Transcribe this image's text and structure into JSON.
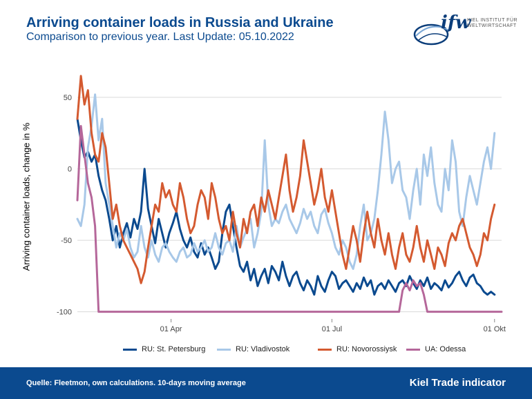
{
  "header": {
    "title": "Arriving container loads in Russia and Ukraine",
    "subtitle": "Comparison to previous year. Last Update: 05.10.2022"
  },
  "logo": {
    "mark": "ifw",
    "line1": "KIEL INSTITUT FÜR",
    "line2": "WELTWIRTSCHAFT",
    "icon": "globe-swoosh-icon"
  },
  "footer": {
    "source": "Quelle: Fleetmon, own calculations. 10-days moving average",
    "brand": "Kiel Trade indicator"
  },
  "colors": {
    "brand": "#0b4a8f",
    "grid": "#d9d9d9"
  },
  "chart_data": {
    "type": "line",
    "ylabel": "Arriving container loads, change in %",
    "ylim": [
      -105,
      65
    ],
    "yticks": [
      -100,
      -50,
      0,
      50
    ],
    "xticks": [
      {
        "label": "01 Apr",
        "x": 53
      },
      {
        "label": "01 Jul",
        "x": 144
      },
      {
        "label": "01 Okt",
        "x": 236
      }
    ],
    "xlim": [
      0,
      240
    ],
    "grid": true,
    "legend_position": "bottom",
    "series": [
      {
        "name": "RU: St. Petersburg",
        "color": "#0b4a8f",
        "x": [
          0,
          2,
          4,
          6,
          8,
          10,
          12,
          14,
          16,
          18,
          20,
          22,
          24,
          26,
          28,
          30,
          32,
          34,
          36,
          38,
          40,
          42,
          44,
          46,
          48,
          50,
          52,
          54,
          56,
          58,
          60,
          62,
          64,
          66,
          68,
          70,
          72,
          74,
          76,
          78,
          80,
          82,
          84,
          86,
          88,
          90,
          92,
          94,
          96,
          98,
          100,
          102,
          104,
          106,
          108,
          110,
          112,
          114,
          116,
          118,
          120,
          122,
          124,
          126,
          128,
          130,
          132,
          134,
          136,
          138,
          140,
          142,
          144,
          146,
          148,
          150,
          152,
          154,
          156,
          158,
          160,
          162,
          164,
          166,
          168,
          170,
          172,
          174,
          176,
          178,
          180,
          182,
          184,
          186,
          188,
          190,
          192,
          194,
          196,
          198,
          200,
          202,
          204,
          206,
          208,
          210,
          212,
          214,
          216,
          218,
          220,
          222,
          224,
          226,
          228,
          230,
          232,
          234,
          236
        ],
        "values": [
          35,
          20,
          8,
          12,
          5,
          10,
          -5,
          -15,
          -22,
          -35,
          -50,
          -40,
          -55,
          -45,
          -38,
          -48,
          -35,
          -42,
          -30,
          0,
          -28,
          -40,
          -52,
          -35,
          -45,
          -55,
          -45,
          -38,
          -30,
          -42,
          -50,
          -55,
          -48,
          -58,
          -62,
          -52,
          -60,
          -55,
          -62,
          -70,
          -65,
          -45,
          -30,
          -25,
          -40,
          -55,
          -68,
          -72,
          -65,
          -78,
          -70,
          -82,
          -75,
          -70,
          -80,
          -68,
          -72,
          -78,
          -65,
          -75,
          -82,
          -75,
          -72,
          -80,
          -85,
          -78,
          -82,
          -88,
          -75,
          -82,
          -86,
          -78,
          -72,
          -75,
          -84,
          -80,
          -78,
          -82,
          -86,
          -80,
          -84,
          -76,
          -82,
          -78,
          -88,
          -82,
          -80,
          -84,
          -78,
          -82,
          -86,
          -80,
          -78,
          -82,
          -75,
          -80,
          -84,
          -78,
          -82,
          -76,
          -84,
          -80,
          -82,
          -85,
          -78,
          -83,
          -80,
          -75,
          -72,
          -78,
          -82,
          -76,
          -74,
          -80,
          -82,
          -86,
          -88,
          -86,
          -88
        ]
      },
      {
        "name": "RU: Vladivostok",
        "color": "#a8c8e8",
        "x": [
          0,
          2,
          4,
          6,
          8,
          10,
          12,
          14,
          16,
          18,
          20,
          22,
          24,
          26,
          28,
          30,
          32,
          34,
          36,
          38,
          40,
          42,
          44,
          46,
          48,
          50,
          52,
          54,
          56,
          58,
          60,
          62,
          64,
          66,
          68,
          70,
          72,
          74,
          76,
          78,
          80,
          82,
          84,
          86,
          88,
          90,
          92,
          94,
          96,
          98,
          100,
          102,
          104,
          106,
          108,
          110,
          112,
          114,
          116,
          118,
          120,
          122,
          124,
          126,
          128,
          130,
          132,
          134,
          136,
          138,
          140,
          142,
          144,
          146,
          148,
          150,
          152,
          154,
          156,
          158,
          160,
          162,
          164,
          166,
          168,
          170,
          172,
          174,
          176,
          178,
          180,
          182,
          184,
          186,
          188,
          190,
          192,
          194,
          196,
          198,
          200,
          202,
          204,
          206,
          208,
          210,
          212,
          214,
          216,
          218,
          220,
          222,
          224,
          226,
          228,
          230,
          232,
          234,
          236
        ],
        "values": [
          -35,
          -40,
          -25,
          15,
          30,
          52,
          20,
          35,
          -10,
          -25,
          -40,
          -55,
          -45,
          -50,
          -42,
          -55,
          -62,
          -58,
          -40,
          -55,
          -62,
          -50,
          -60,
          -65,
          -55,
          -52,
          -58,
          -62,
          -65,
          -58,
          -55,
          -62,
          -60,
          -52,
          -58,
          -55,
          -50,
          -58,
          -55,
          -45,
          -55,
          -60,
          -52,
          -50,
          -58,
          -40,
          -55,
          -48,
          -42,
          -35,
          -55,
          -45,
          -30,
          20,
          -25,
          -40,
          -35,
          -38,
          -30,
          -25,
          -35,
          -40,
          -45,
          -38,
          -28,
          -35,
          -30,
          -40,
          -45,
          -32,
          -28,
          -38,
          -45,
          -55,
          -60,
          -50,
          -55,
          -65,
          -70,
          -60,
          -40,
          -25,
          -50,
          -45,
          -35,
          -15,
          10,
          40,
          20,
          -10,
          0,
          5,
          -15,
          -20,
          -35,
          -15,
          0,
          -25,
          10,
          -5,
          15,
          -10,
          -25,
          -30,
          0,
          -15,
          20,
          5,
          -30,
          -40,
          -20,
          -5,
          -15,
          -25,
          -10,
          5,
          15,
          0,
          25
        ]
      },
      {
        "name": "RU: Novorossiysk",
        "color": "#d45a30",
        "x": [
          0,
          2,
          4,
          6,
          8,
          10,
          12,
          14,
          16,
          18,
          20,
          22,
          24,
          26,
          28,
          30,
          32,
          34,
          36,
          38,
          40,
          42,
          44,
          46,
          48,
          50,
          52,
          54,
          56,
          58,
          60,
          62,
          64,
          66,
          68,
          70,
          72,
          74,
          76,
          78,
          80,
          82,
          84,
          86,
          88,
          90,
          92,
          94,
          96,
          98,
          100,
          102,
          104,
          106,
          108,
          110,
          112,
          114,
          116,
          118,
          120,
          122,
          124,
          126,
          128,
          130,
          132,
          134,
          136,
          138,
          140,
          142,
          144,
          146,
          148,
          150,
          152,
          154,
          156,
          158,
          160,
          162,
          164,
          166,
          168,
          170,
          172,
          174,
          176,
          178,
          180,
          182,
          184,
          186,
          188,
          190,
          192,
          194,
          196,
          198,
          200,
          202,
          204,
          206,
          208,
          210,
          212,
          214,
          216,
          218,
          220,
          222,
          224,
          226,
          228,
          230,
          232,
          234,
          236
        ],
        "values": [
          35,
          65,
          45,
          55,
          25,
          10,
          5,
          25,
          15,
          -10,
          -35,
          -25,
          -40,
          -50,
          -55,
          -60,
          -65,
          -70,
          -80,
          -72,
          -55,
          -40,
          -25,
          -30,
          -10,
          -20,
          -15,
          -25,
          -30,
          -10,
          -20,
          -35,
          -45,
          -40,
          -25,
          -15,
          -20,
          -35,
          -10,
          -20,
          -35,
          -45,
          -40,
          -50,
          -30,
          -45,
          -55,
          -35,
          -45,
          -30,
          -25,
          -40,
          -20,
          -30,
          -15,
          -25,
          -35,
          -20,
          -5,
          10,
          -15,
          -30,
          -20,
          -5,
          20,
          5,
          -10,
          -25,
          -15,
          0,
          -20,
          -30,
          -15,
          -30,
          -45,
          -60,
          -70,
          -55,
          -40,
          -50,
          -65,
          -45,
          -30,
          -45,
          -55,
          -35,
          -50,
          -60,
          -45,
          -60,
          -70,
          -55,
          -45,
          -60,
          -65,
          -55,
          -40,
          -55,
          -65,
          -50,
          -60,
          -70,
          -55,
          -60,
          -68,
          -52,
          -45,
          -50,
          -40,
          -35,
          -45,
          -55,
          -60,
          -68,
          -60,
          -45,
          -50,
          -35,
          -25
        ]
      },
      {
        "name": "UA: Odessa",
        "color": "#b5679a",
        "x": [
          0,
          2,
          4,
          6,
          8,
          10,
          12,
          14,
          16,
          18,
          20,
          22,
          180,
          182,
          184,
          186,
          188,
          190,
          192,
          194,
          196,
          198,
          200,
          240
        ],
        "values": [
          -22,
          30,
          10,
          -10,
          -20,
          -40,
          -100,
          -100,
          -100,
          -100,
          -100,
          -100,
          -100,
          -100,
          -85,
          -80,
          -85,
          -78,
          -82,
          -80,
          -88,
          -100,
          -100,
          -100
        ]
      }
    ]
  }
}
